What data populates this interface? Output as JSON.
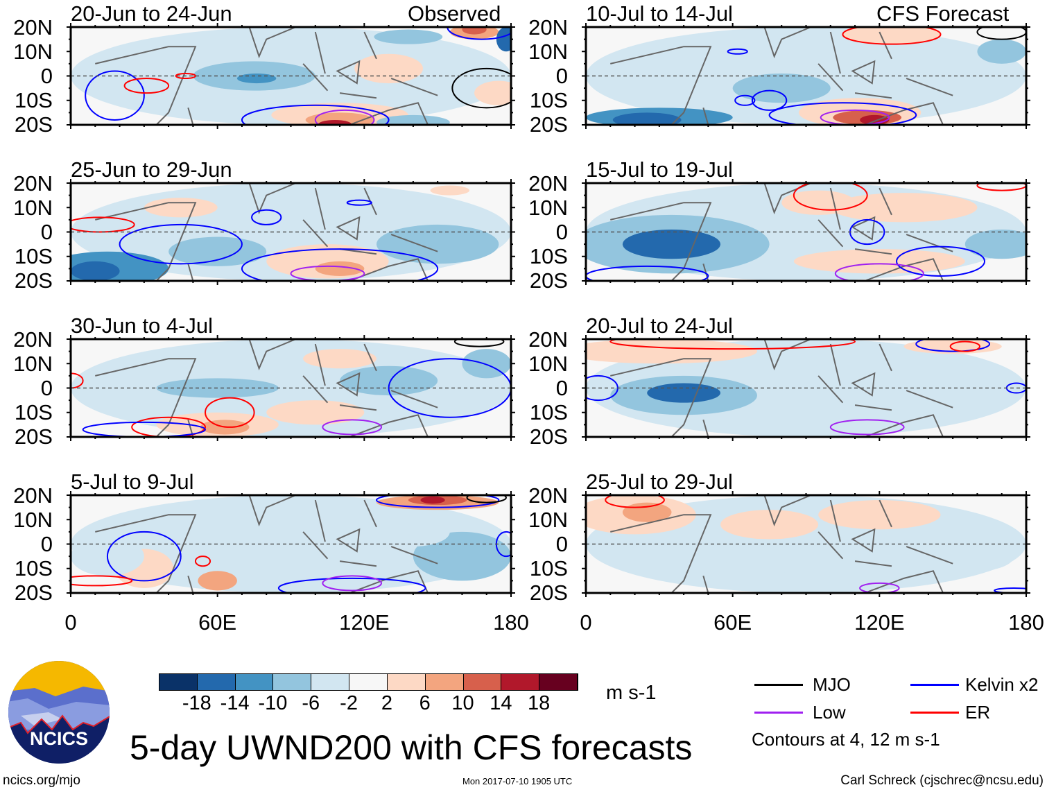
{
  "figure": {
    "title": "5-day UWND200 with CFS forecasts",
    "left_header": "Observed",
    "right_header": "CFS Forecast",
    "units": "m s-1",
    "url": "ncics.org/mjo",
    "timestamp": "Mon 2017-07-10 1905 UTC",
    "author": "Carl Schreck (cjschrec@ncsu.edu)",
    "logo_text": "NCICS",
    "contour_note": "Contours at 4, 12 m s-1"
  },
  "axes": {
    "lat_labels": [
      "20N",
      "10N",
      "0",
      "10S",
      "20S"
    ],
    "lon_labels": [
      "0",
      "60E",
      "120E",
      "180"
    ]
  },
  "colorbar": {
    "colors": [
      "#0a3268",
      "#2369ad",
      "#4393c3",
      "#93c5de",
      "#d2e6f1",
      "#f7f7f7",
      "#fdd9c5",
      "#f3a57f",
      "#d7604c",
      "#b1182b",
      "#67001f"
    ],
    "labels": [
      "-18",
      "-14",
      "-10",
      "-6",
      "-2",
      "2",
      "6",
      "10",
      "14",
      "18"
    ]
  },
  "legend": [
    {
      "label": "MJO",
      "color": "#000000"
    },
    {
      "label": "Kelvin x2",
      "color": "#0000ff"
    },
    {
      "label": "Low",
      "color": "#a020f0"
    },
    {
      "label": "ER",
      "color": "#ff0000"
    }
  ],
  "panels": [
    {
      "title": "20-Jun to 24-Jun",
      "column": "left",
      "row": 0,
      "blobs": [
        [
          90,
          0,
          90,
          20,
          -3
        ],
        [
          75,
          0,
          25,
          6,
          -8
        ],
        [
          76,
          -1,
          8,
          2,
          -11
        ],
        [
          130,
          3,
          14,
          6,
          4
        ],
        [
          110,
          -16,
          28,
          5,
          6
        ],
        [
          110,
          -18,
          14,
          3,
          10
        ],
        [
          108,
          -20,
          7,
          2,
          16
        ],
        [
          165,
          18,
          10,
          3,
          8
        ],
        [
          165,
          19,
          5,
          2,
          14
        ],
        [
          138,
          16,
          14,
          3,
          -8
        ],
        [
          178,
          15,
          4,
          5,
          -14
        ],
        [
          175,
          -7,
          10,
          5,
          6
        ],
        [
          140,
          -19,
          15,
          3,
          -8
        ]
      ],
      "contours": [
        [
          170,
          -5,
          14,
          8,
          "#000000"
        ],
        [
          18,
          -8,
          12,
          10,
          "#0000ff"
        ],
        [
          100,
          -18,
          30,
          6,
          "#0000ff"
        ],
        [
          112,
          -18,
          12,
          4,
          "#a020f0"
        ],
        [
          31,
          -4,
          9,
          3,
          "#ff0000"
        ],
        [
          47,
          0,
          4,
          1,
          "#ff0000"
        ],
        [
          168,
          20,
          14,
          5,
          "#0000ff"
        ]
      ]
    },
    {
      "title": "25-Jun to 29-Jun",
      "column": "left",
      "row": 1,
      "blobs": [
        [
          90,
          0,
          90,
          20,
          -3
        ],
        [
          15,
          -15,
          25,
          7,
          -10
        ],
        [
          10,
          -16,
          10,
          4,
          -14
        ],
        [
          105,
          -12,
          25,
          7,
          6
        ],
        [
          110,
          -15,
          10,
          3,
          10
        ],
        [
          60,
          -8,
          20,
          6,
          -6
        ],
        [
          150,
          -5,
          25,
          8,
          -6
        ],
        [
          155,
          17,
          8,
          2,
          6
        ],
        [
          45,
          10,
          15,
          4,
          4
        ]
      ],
      "contours": [
        [
          12,
          3,
          14,
          3,
          "#ff0000"
        ],
        [
          45,
          -5,
          25,
          8,
          "#0000ff"
        ],
        [
          110,
          -15,
          40,
          8,
          "#0000ff"
        ],
        [
          80,
          6,
          6,
          3,
          "#0000ff"
        ],
        [
          118,
          12,
          5,
          1,
          "#0000ff"
        ],
        [
          105,
          -17,
          15,
          3,
          "#a020f0"
        ]
      ]
    },
    {
      "title": "30-Jun to 4-Jul",
      "column": "left",
      "row": 2,
      "blobs": [
        [
          90,
          0,
          90,
          20,
          -3
        ],
        [
          60,
          0,
          25,
          4,
          -8
        ],
        [
          60,
          -15,
          25,
          5,
          6
        ],
        [
          63,
          -16,
          10,
          3,
          10
        ],
        [
          130,
          3,
          20,
          6,
          -6
        ],
        [
          170,
          10,
          10,
          6,
          -6
        ],
        [
          100,
          -10,
          20,
          5,
          4
        ],
        [
          110,
          12,
          15,
          4,
          4
        ]
      ],
      "contours": [
        [
          65,
          -10,
          10,
          6,
          "#ff0000"
        ],
        [
          40,
          -16,
          15,
          4,
          "#ff0000"
        ],
        [
          155,
          0,
          25,
          12,
          "#0000ff"
        ],
        [
          30,
          -17,
          25,
          3,
          "#0000ff"
        ],
        [
          115,
          -16,
          12,
          3,
          "#a020f0"
        ],
        [
          167,
          19,
          10,
          2,
          "#000000"
        ],
        [
          0,
          3,
          5,
          3,
          "#ff0000"
        ]
      ]
    },
    {
      "title": "5-Jul to 9-Jul",
      "column": "left",
      "row": 3,
      "blobs": [
        [
          90,
          0,
          90,
          20,
          -3
        ],
        [
          150,
          17,
          25,
          3,
          8
        ],
        [
          150,
          18,
          12,
          2,
          14
        ],
        [
          148,
          18,
          5,
          1.5,
          18
        ],
        [
          60,
          -15,
          8,
          4,
          8
        ],
        [
          30,
          -10,
          12,
          8,
          4
        ],
        [
          160,
          -5,
          20,
          10,
          -6
        ],
        [
          15,
          -5,
          15,
          8,
          -5
        ],
        [
          140,
          5,
          15,
          6,
          -5
        ]
      ],
      "contours": [
        [
          150,
          18,
          25,
          3,
          "#0000ff"
        ],
        [
          170,
          19,
          8,
          2,
          "#000000"
        ],
        [
          30,
          -5,
          15,
          10,
          "#0000ff"
        ],
        [
          115,
          -18,
          30,
          4,
          "#0000ff"
        ],
        [
          115,
          -16,
          12,
          3,
          "#a020f0"
        ],
        [
          54,
          -7,
          3,
          2,
          "#ff0000"
        ],
        [
          10,
          -15,
          15,
          2,
          "#ff0000"
        ],
        [
          178,
          0,
          4,
          5,
          "#0000ff"
        ]
      ]
    },
    {
      "title": "10-Jul to 14-Jul",
      "column": "right",
      "row": 0,
      "blobs": [
        [
          90,
          0,
          90,
          20,
          -3
        ],
        [
          30,
          -17,
          30,
          4,
          -10
        ],
        [
          25,
          -18,
          14,
          3,
          -16
        ],
        [
          112,
          -15,
          25,
          6,
          6
        ],
        [
          115,
          -17,
          14,
          3,
          12
        ],
        [
          118,
          -18,
          6,
          2,
          18
        ],
        [
          125,
          17,
          20,
          4,
          6
        ],
        [
          80,
          -5,
          20,
          6,
          -6
        ],
        [
          170,
          10,
          10,
          5,
          -6
        ]
      ],
      "contours": [
        [
          125,
          17,
          20,
          4,
          "#ff0000"
        ],
        [
          105,
          -16,
          30,
          5,
          "#0000ff"
        ],
        [
          110,
          -17,
          14,
          3,
          "#a020f0"
        ],
        [
          75,
          -10,
          7,
          4,
          "#0000ff"
        ],
        [
          65,
          -10,
          4,
          2,
          "#0000ff"
        ],
        [
          62,
          10,
          4,
          1,
          "#0000ff"
        ],
        [
          170,
          18,
          10,
          3,
          "#000000"
        ]
      ]
    },
    {
      "title": "15-Jul to 19-Jul",
      "column": "right",
      "row": 1,
      "blobs": [
        [
          90,
          0,
          90,
          20,
          -3
        ],
        [
          35,
          -5,
          40,
          12,
          -8
        ],
        [
          35,
          -5,
          20,
          6,
          -14
        ],
        [
          120,
          -12,
          35,
          5,
          4
        ],
        [
          130,
          10,
          30,
          6,
          4
        ],
        [
          170,
          -5,
          15,
          6,
          -6
        ],
        [
          95,
          12,
          15,
          5,
          4
        ]
      ],
      "contours": [
        [
          100,
          15,
          15,
          6,
          "#ff0000"
        ],
        [
          115,
          0,
          7,
          5,
          "#0000ff"
        ],
        [
          145,
          -12,
          18,
          6,
          "#0000ff"
        ],
        [
          25,
          -18,
          25,
          4,
          "#0000ff"
        ],
        [
          120,
          -17,
          18,
          4,
          "#a020f0"
        ],
        [
          170,
          19,
          10,
          2,
          "#ff0000"
        ]
      ]
    },
    {
      "title": "20-Jul to 24-Jul",
      "column": "right",
      "row": 2,
      "blobs": [
        [
          90,
          0,
          90,
          20,
          -3
        ],
        [
          40,
          -3,
          30,
          8,
          -8
        ],
        [
          40,
          -2,
          15,
          4,
          -14
        ],
        [
          30,
          15,
          40,
          5,
          4
        ],
        [
          150,
          17,
          20,
          3,
          6
        ],
        [
          120,
          5,
          30,
          8,
          -4
        ],
        [
          100,
          -10,
          30,
          6,
          -4
        ]
      ],
      "contours": [
        [
          60,
          19,
          50,
          3,
          "#ff0000"
        ],
        [
          150,
          18,
          15,
          3,
          "#0000ff"
        ],
        [
          155,
          17,
          6,
          2,
          "#ff0000"
        ],
        [
          115,
          -16,
          15,
          3,
          "#a020f0"
        ],
        [
          5,
          0,
          8,
          5,
          "#0000ff"
        ],
        [
          176,
          0,
          4,
          2,
          "#0000ff"
        ]
      ]
    },
    {
      "title": "25-Jul to 29-Jul",
      "column": "right",
      "row": 3,
      "blobs": [
        [
          90,
          0,
          90,
          20,
          -2
        ],
        [
          20,
          12,
          25,
          8,
          6
        ],
        [
          25,
          13,
          10,
          4,
          8
        ],
        [
          75,
          8,
          20,
          6,
          4
        ],
        [
          70,
          -5,
          15,
          5,
          -5
        ],
        [
          120,
          12,
          25,
          6,
          4
        ],
        [
          110,
          -10,
          30,
          6,
          -4
        ],
        [
          160,
          -5,
          15,
          6,
          -4
        ]
      ],
      "contours": [
        [
          120,
          -18,
          8,
          2,
          "#a020f0"
        ],
        [
          20,
          18,
          12,
          3,
          "#ff0000"
        ],
        [
          175,
          -19,
          8,
          1,
          "#0000ff"
        ]
      ]
    }
  ]
}
